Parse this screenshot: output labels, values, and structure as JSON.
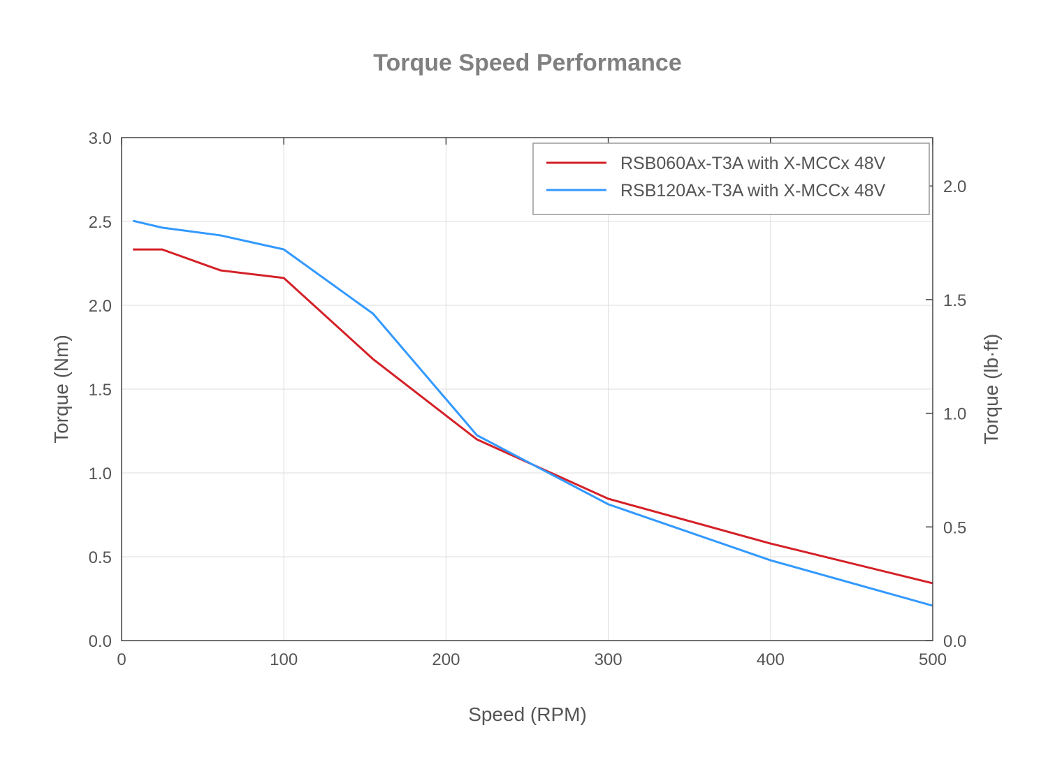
{
  "chart_data": {
    "type": "line",
    "title": "Torque Speed Performance",
    "xlabel": "Speed (RPM)",
    "ylabel": "Torque (Nm)",
    "ylabel_right": "Torque (lb·ft)",
    "xlim": [
      0,
      500
    ],
    "ylim": [
      0,
      3.0
    ],
    "ylim_right": [
      0,
      2.2127
    ],
    "x_ticks": [
      "0",
      "100",
      "200",
      "300",
      "400",
      "500"
    ],
    "y_ticks": [
      "0.0",
      "0.5",
      "1.0",
      "1.5",
      "2.0",
      "2.5",
      "3.0"
    ],
    "y_right_ticks": [
      "0.0",
      "0.5",
      "1.0",
      "1.5",
      "2.0"
    ],
    "grid": true,
    "legend_position": "top-right",
    "series": [
      {
        "name": "RSB060Ax-T3A with X-MCCx 48V",
        "color": "#d42027",
        "x": [
          7,
          25,
          61,
          100,
          155,
          219,
          300,
          400,
          500
        ],
        "y": [
          2.333,
          2.333,
          2.208,
          2.163,
          1.679,
          1.2,
          0.846,
          0.579,
          0.342
        ]
      },
      {
        "name": "RSB120Ax-T3A with X-MCCx 48V",
        "color": "#3399ff",
        "x": [
          7,
          25,
          61,
          100,
          155,
          219,
          300,
          400,
          500
        ],
        "y": [
          2.504,
          2.463,
          2.417,
          2.333,
          1.95,
          1.225,
          0.813,
          0.479,
          0.208
        ]
      }
    ]
  }
}
